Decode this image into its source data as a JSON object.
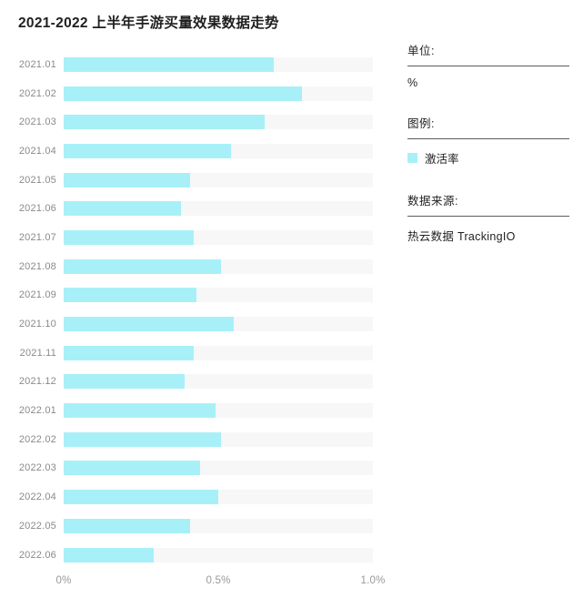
{
  "title": "2021-2022 上半年手游买量效果数据走势",
  "colors": {
    "bar": "#a8f0f8",
    "track": "#f7f7f7",
    "title_text": "#1f1f1f",
    "axis_text": "#8a8a8a"
  },
  "chart_data": {
    "type": "bar",
    "orientation": "horizontal",
    "title": "2021-2022 上半年手游买量效果数据走势",
    "categories": [
      "2021.01",
      "2021.02",
      "2021.03",
      "2021.04",
      "2021.05",
      "2021.06",
      "2021.07",
      "2021.08",
      "2021.09",
      "2021.10",
      "2021.11",
      "2021.12",
      "2022.01",
      "2022.02",
      "2022.03",
      "2022.04",
      "2022.05",
      "2022.06"
    ],
    "series": [
      {
        "name": "激活率",
        "color": "#a8f0f8",
        "values": [
          0.68,
          0.77,
          0.65,
          0.54,
          0.41,
          0.38,
          0.42,
          0.51,
          0.43,
          0.55,
          0.42,
          0.39,
          0.49,
          0.51,
          0.44,
          0.5,
          0.41,
          0.29
        ]
      }
    ],
    "unit": "%",
    "xlabel": "",
    "ylabel": "",
    "xlim": [
      0,
      1.0
    ],
    "x_ticks": [
      {
        "label": "0%",
        "value": 0
      },
      {
        "label": "0.5%",
        "value": 0.5
      },
      {
        "label": "1.0%",
        "value": 1.0
      }
    ],
    "grid": false,
    "legend_position": "right-panel"
  },
  "side_panel": {
    "unit_label": "单位:",
    "unit_value": "%",
    "legend_label": "图例:",
    "legend_items": [
      {
        "name": "激活率",
        "color": "#a8f0f8"
      }
    ],
    "source_label": "数据来源:",
    "source_value": "热云数据 TrackingIO"
  }
}
